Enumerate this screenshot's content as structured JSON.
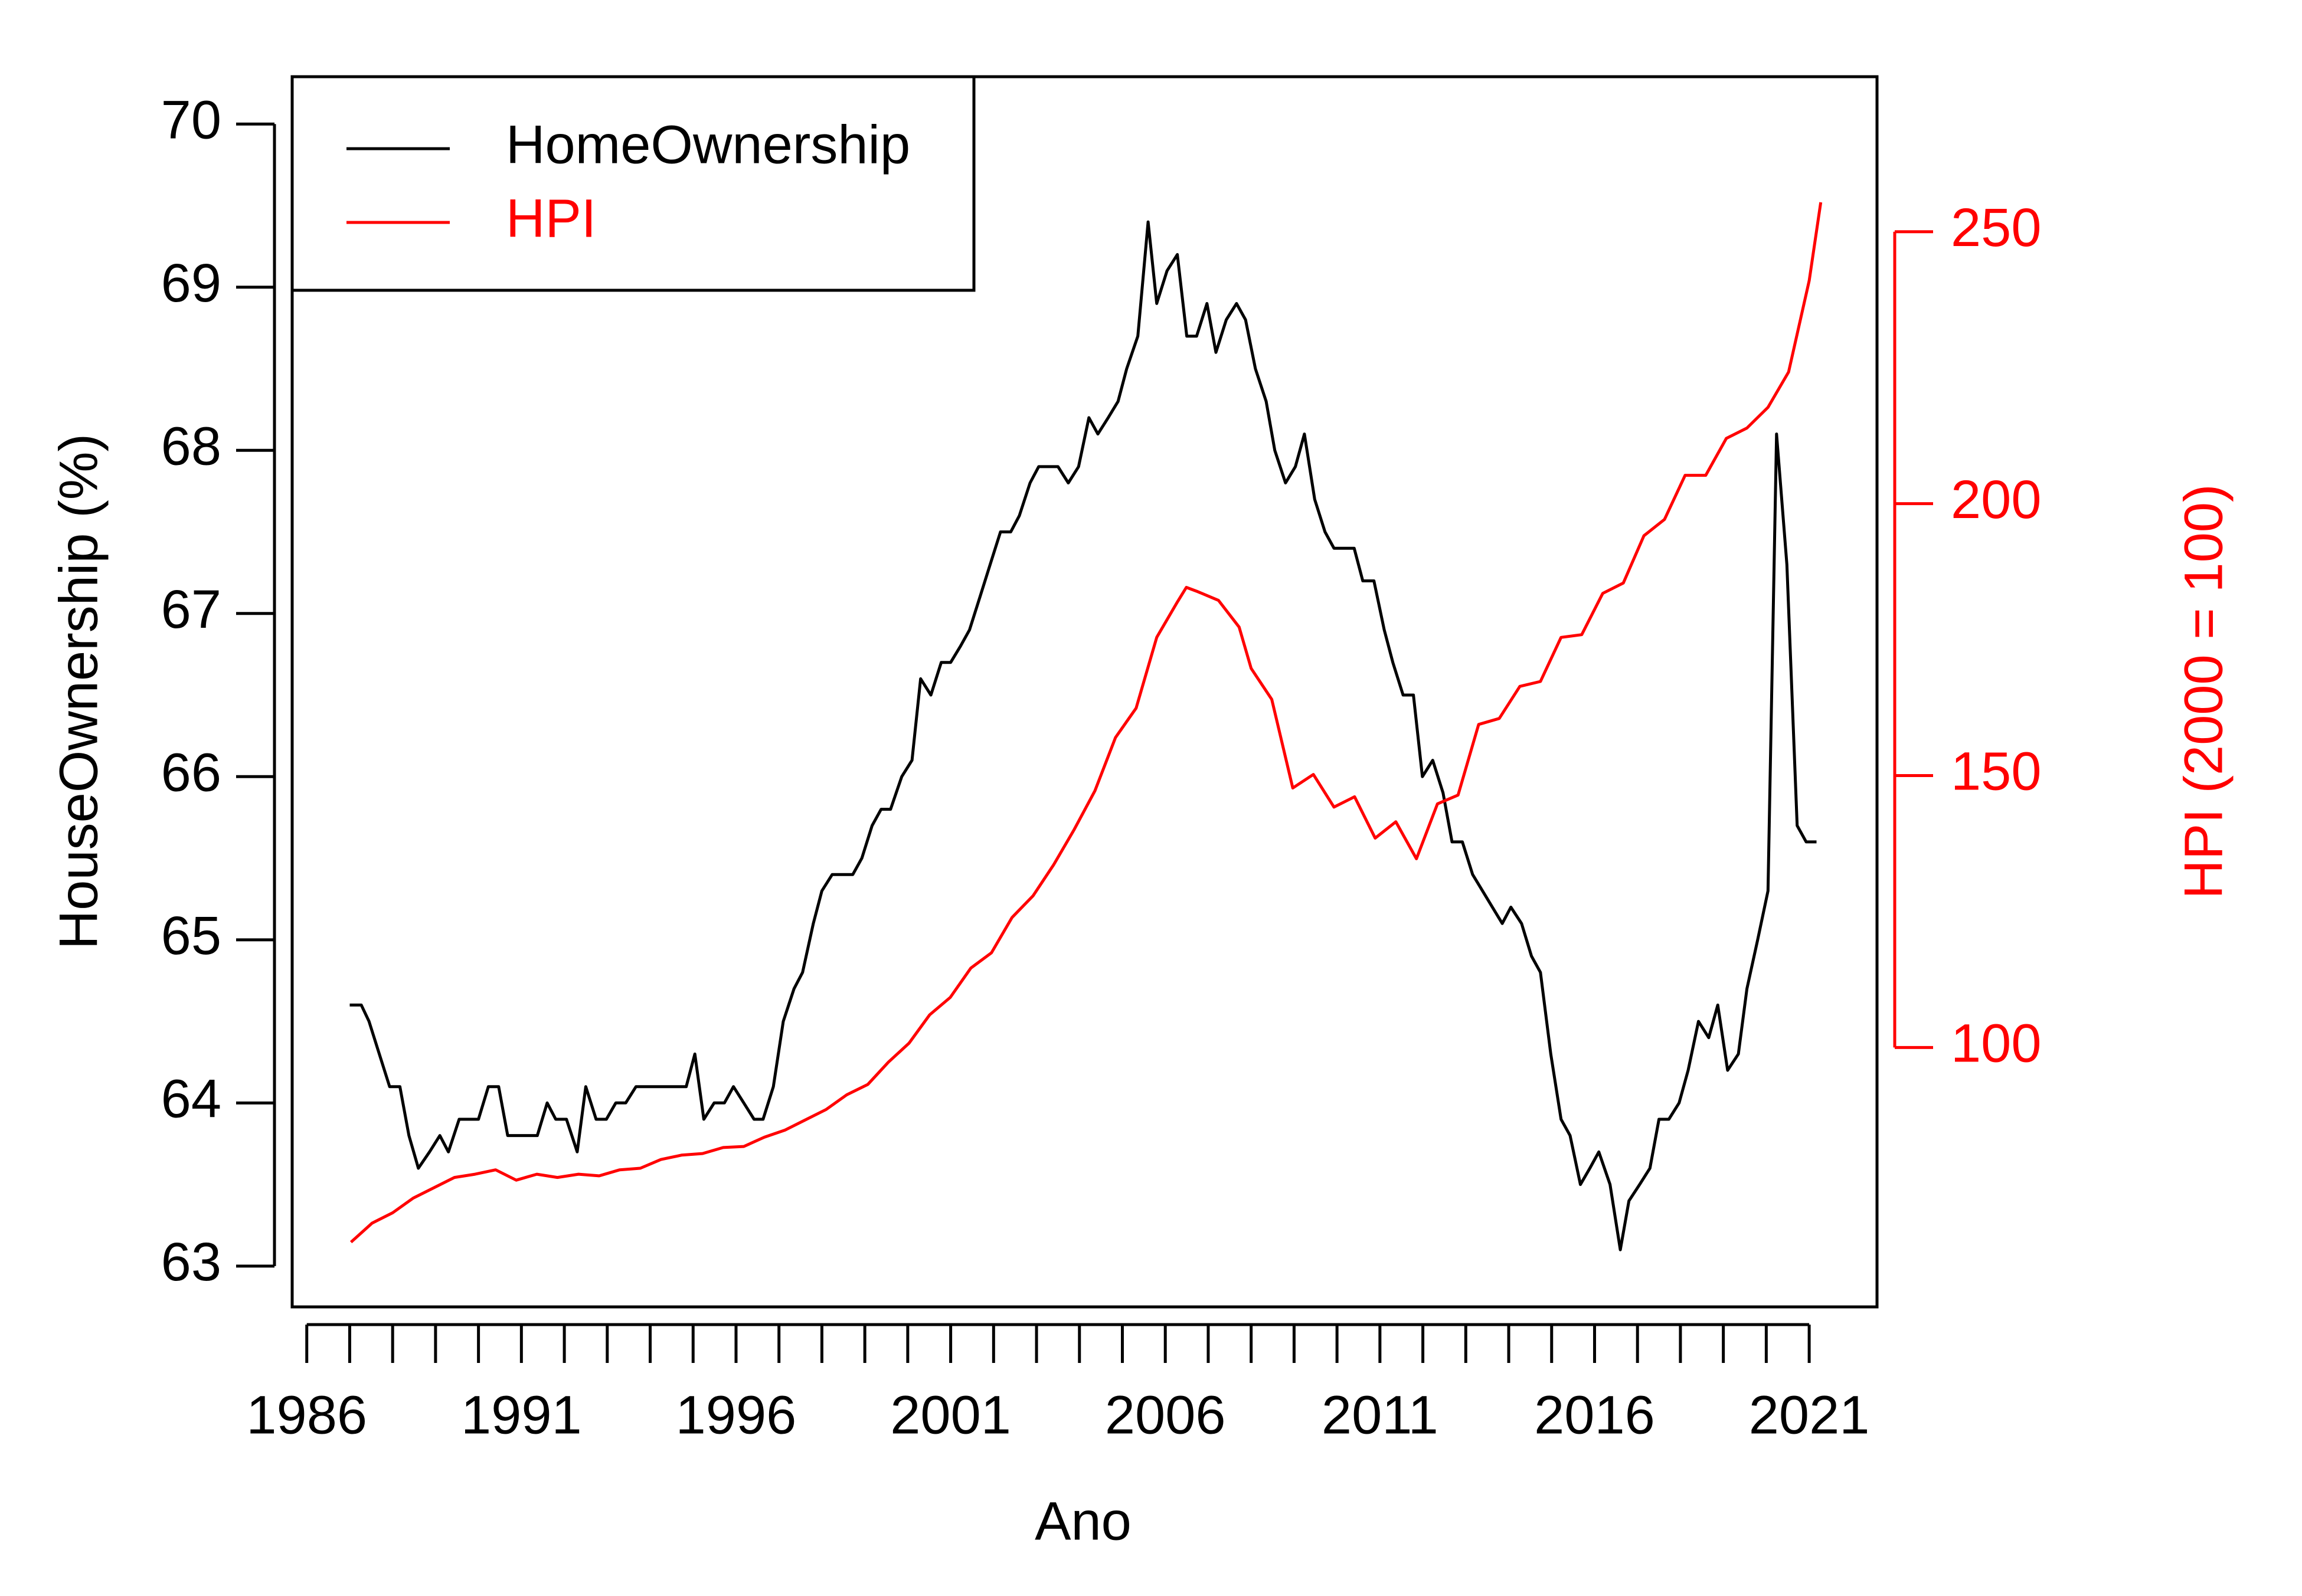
{
  "chart_data": {
    "type": "line",
    "xlabel": "Ano",
    "ylabel": "HouseOwnership (%)",
    "y2label": "HPI (2000 = 100)",
    "legend": "top-left",
    "xlim": [
      1985.66,
      2022.58
    ],
    "xticks": [
      1986,
      1991,
      1996,
      2001,
      2006,
      2011,
      2016,
      2021
    ],
    "xminorticks": [
      1987,
      1988,
      1989,
      1990,
      1992,
      1993,
      1994,
      1995,
      1997,
      1998,
      1999,
      2000,
      2002,
      2003,
      2004,
      2005,
      2007,
      2008,
      2009,
      2010,
      2012,
      2013,
      2014,
      2015,
      2017,
      2018,
      2019,
      2020
    ],
    "ylim": [
      62.75,
      70.29
    ],
    "yticks": [
      63,
      64,
      65,
      66,
      67,
      68,
      69,
      70
    ],
    "y2lim": [
      52.3,
      278.5
    ],
    "y2ticks": [
      100,
      150,
      200,
      250
    ],
    "series": [
      {
        "name": "HomeOwnership",
        "color": "#000000",
        "x": [
          1987.0,
          1987.27,
          1987.45,
          1987.69,
          1987.93,
          1988.17,
          1988.38,
          1988.6,
          1988.86,
          1989.1,
          1989.3,
          1989.55,
          1990.0,
          1990.23,
          1990.47,
          1990.68,
          1991.37,
          1991.6,
          1991.8,
          1992.05,
          1992.3,
          1992.5,
          1992.74,
          1992.98,
          1993.2,
          1993.43,
          1993.67,
          1994.84,
          1995.04,
          1995.25,
          1995.49,
          1995.73,
          1995.94,
          1996.18,
          1996.42,
          1996.63,
          1996.87,
          1997.1,
          1997.35,
          1997.55,
          1997.8,
          1998.0,
          1998.24,
          1998.72,
          1998.93,
          1999.17,
          1999.38,
          1999.6,
          1999.86,
          2000.1,
          2000.3,
          2000.54,
          2000.78,
          2001.0,
          2001.23,
          2001.44,
          2001.68,
          2001.92,
          2002.16,
          2002.4,
          2002.6,
          2002.85,
          2003.05,
          2003.5,
          2003.74,
          2003.98,
          2004.22,
          2004.43,
          2004.67,
          2004.9,
          2005.1,
          2005.36,
          2005.6,
          2005.8,
          2006.04,
          2006.28,
          2006.5,
          2006.73,
          2006.97,
          2007.18,
          2007.42,
          2007.66,
          2007.87,
          2008.1,
          2008.35,
          2008.55,
          2008.8,
          2009.03,
          2009.24,
          2009.48,
          2009.72,
          2009.93,
          2010.4,
          2010.6,
          2010.86,
          2011.1,
          2011.3,
          2011.54,
          2011.78,
          2011.99,
          2012.23,
          2012.47,
          2012.68,
          2012.92,
          2013.16,
          2013.85,
          2014.05,
          2014.3,
          2014.53,
          2014.74,
          2014.98,
          2015.22,
          2015.43,
          2015.67,
          2015.89,
          2016.1,
          2016.36,
          2016.6,
          2016.8,
          2017.05,
          2017.29,
          2017.5,
          2017.73,
          2017.97,
          2018.18,
          2018.42,
          2018.66,
          2018.87,
          2019.1,
          2019.35,
          2019.55,
          2019.8,
          2020.04,
          2020.24,
          2020.48,
          2020.72,
          2020.93,
          2021.17
        ],
        "values": [
          64.6,
          64.6,
          64.5,
          64.3,
          64.1,
          64.1,
          63.8,
          63.6,
          63.7,
          63.8,
          63.7,
          63.9,
          63.9,
          64.1,
          64.1,
          63.8,
          63.8,
          64.0,
          63.9,
          63.9,
          63.7,
          64.1,
          63.9,
          63.9,
          64.0,
          64.0,
          64.1,
          64.1,
          64.3,
          63.9,
          64.0,
          64.0,
          64.1,
          64.0,
          63.9,
          63.9,
          64.1,
          64.5,
          64.7,
          64.8,
          65.1,
          65.3,
          65.4,
          65.4,
          65.5,
          65.7,
          65.8,
          65.8,
          66.0,
          66.1,
          66.6,
          66.5,
          66.7,
          66.7,
          66.8,
          66.9,
          67.1,
          67.3,
          67.5,
          67.5,
          67.6,
          67.8,
          67.9,
          67.9,
          67.8,
          67.9,
          68.2,
          68.1,
          68.2,
          68.3,
          68.5,
          68.7,
          69.4,
          68.9,
          69.1,
          69.2,
          68.7,
          68.7,
          68.9,
          68.6,
          68.8,
          68.9,
          68.8,
          68.5,
          68.3,
          68.0,
          67.8,
          67.9,
          68.1,
          67.7,
          67.5,
          67.4,
          67.4,
          67.2,
          67.2,
          66.9,
          66.7,
          66.5,
          66.5,
          66.0,
          66.1,
          65.9,
          65.6,
          65.6,
          65.4,
          65.1,
          65.2,
          65.1,
          64.9,
          64.8,
          64.3,
          63.9,
          63.8,
          63.5,
          63.6,
          63.7,
          63.5,
          63.1,
          63.4,
          63.5,
          63.6,
          63.9,
          63.9,
          64.0,
          64.2,
          64.5,
          64.4,
          64.6,
          64.2,
          64.3,
          64.7,
          65.0,
          65.3,
          68.1,
          67.3,
          65.7,
          65.6,
          65.6
        ]
      },
      {
        "name": "HPI",
        "color": "#ff0000",
        "axis": "y2",
        "x": [
          1987.03,
          1987.52,
          1988.0,
          1988.48,
          1988.96,
          1989.44,
          1989.92,
          1990.4,
          1990.88,
          1991.36,
          1991.84,
          1992.33,
          1992.81,
          1993.29,
          1993.77,
          1994.25,
          1994.73,
          1995.22,
          1995.7,
          1996.18,
          1996.66,
          1997.14,
          1997.62,
          1998.1,
          1998.58,
          1999.07,
          1999.55,
          2000.03,
          2000.51,
          2000.99,
          2001.47,
          2001.95,
          2002.43,
          2002.92,
          2003.4,
          2003.88,
          2004.36,
          2004.84,
          2005.32,
          2005.8,
          2006.28,
          2006.49,
          2006.76,
          2007.24,
          2007.72,
          2008.0,
          2008.48,
          2008.97,
          2009.45,
          2009.93,
          2010.41,
          2010.89,
          2011.37,
          2011.85,
          2012.34,
          2012.82,
          2013.3,
          2013.78,
          2014.26,
          2014.74,
          2015.22,
          2015.7,
          2016.19,
          2016.67,
          2017.15,
          2017.63,
          2018.11,
          2018.59,
          2019.07,
          2019.55,
          2020.04,
          2020.52,
          2021.0,
          2021.27
        ],
        "values": [
          64.2,
          67.7,
          69.6,
          72.3,
          74.2,
          76.1,
          76.7,
          77.5,
          75.6,
          76.7,
          76.1,
          76.7,
          76.4,
          77.5,
          77.8,
          79.4,
          80.2,
          80.5,
          81.6,
          81.8,
          83.5,
          84.8,
          86.7,
          88.6,
          91.3,
          93.2,
          97.3,
          100.8,
          106.0,
          109.2,
          114.6,
          117.4,
          123.9,
          127.9,
          133.6,
          140.1,
          147.2,
          157.0,
          162.4,
          175.4,
          181.9,
          184.6,
          183.8,
          182.2,
          177.3,
          169.7,
          164.0,
          147.7,
          150.2,
          144.2,
          146.1,
          138.5,
          141.5,
          134.7,
          144.8,
          146.4,
          159.4,
          160.5,
          166.4,
          167.3,
          175.4,
          175.9,
          183.5,
          185.4,
          194.1,
          197.1,
          205.2,
          205.2,
          212.0,
          213.9,
          217.7,
          224.2,
          241.0,
          255.4
        ]
      }
    ]
  }
}
